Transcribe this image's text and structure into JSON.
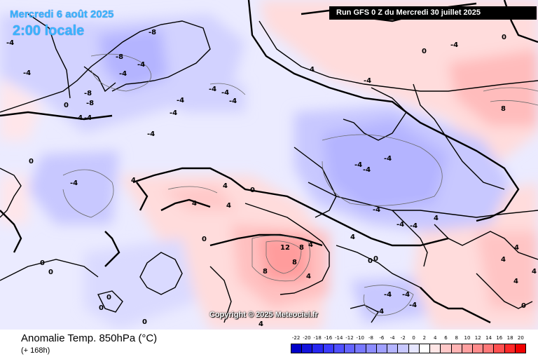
{
  "header": {
    "valid_date": "Mercredi 6 août 2025",
    "valid_time": "2:00 locale",
    "run_banner": "Run GFS 0 Z du Mercredi 30 juillet 2025"
  },
  "footer": {
    "parameter_title": "Anomalie Temp. 850hPa (°C)",
    "forecast_offset": "(+ 168h)",
    "copyright": "Copyright © 2025 Meteociel.fr"
  },
  "legend": {
    "labels": [
      "-22",
      "-20",
      "-18",
      "-16",
      "-14",
      "-12",
      "-10",
      "-8",
      "-6",
      "-4",
      "-2",
      "0",
      "2",
      "4",
      "6",
      "8",
      "10",
      "12",
      "14",
      "16",
      "18",
      "20"
    ],
    "colors": [
      "#0000c8",
      "#1414dc",
      "#2828f0",
      "#3c3cff",
      "#5050ff",
      "#6464ff",
      "#7878ff",
      "#8c8cff",
      "#a0a0ff",
      "#b4b4ff",
      "#c8c8ff",
      "#e6e6ff",
      "#ffffff",
      "#ffe6e6",
      "#ffc8c8",
      "#ffb4b4",
      "#ffa0a0",
      "#ff8c8c",
      "#ff7878",
      "#ff5050",
      "#ff2828",
      "#f00000"
    ]
  },
  "contour_labels": [
    "-8",
    "-8",
    "-4",
    "-4",
    "-8",
    "-8",
    "-4",
    "-4",
    "-4",
    "-4",
    "0",
    "0",
    "-4",
    "-4",
    "-4",
    "-4",
    "-4",
    "-4",
    "-4",
    "-4",
    "-4",
    "0",
    "0",
    "4",
    "4",
    "4",
    "4",
    "4",
    "8",
    "0",
    "-4",
    "-4",
    "-4",
    "-4",
    "-4",
    "4",
    "4",
    "4",
    "12",
    "8",
    "8",
    "8",
    "4",
    "4",
    "0",
    "-4",
    "-4",
    "-4",
    "-4",
    "0",
    "0",
    "0",
    "0",
    "0",
    "0",
    "4",
    "4",
    "0",
    "-4",
    "0",
    "4",
    "4"
  ]
}
